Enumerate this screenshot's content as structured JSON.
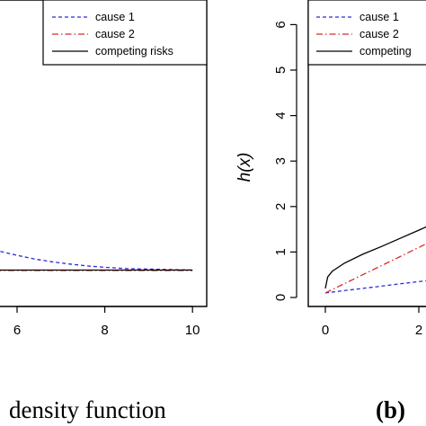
{
  "chart_data": [
    {
      "panel": "left",
      "type": "line",
      "xlim": [
        0,
        10
      ],
      "x_ticks": [
        6,
        8,
        10
      ],
      "legend": {
        "placement": "top-right",
        "entries": [
          "cause 1",
          "cause 2",
          "competing risks"
        ]
      },
      "series": [
        {
          "name": "cause 1",
          "color": "#2b2bd6",
          "style": "dashed",
          "points": [
            [
              5.2,
              0.94
            ],
            [
              5.6,
              0.85
            ],
            [
              6.0,
              0.76
            ],
            [
              6.4,
              0.68
            ],
            [
              6.8,
              0.62
            ],
            [
              7.2,
              0.57
            ],
            [
              7.6,
              0.53
            ],
            [
              8.0,
              0.5
            ],
            [
              8.5,
              0.47
            ],
            [
              9.0,
              0.46
            ],
            [
              9.5,
              0.45
            ],
            [
              10.0,
              0.44
            ]
          ]
        },
        {
          "name": "cause 2",
          "color": "#d62b2b",
          "style": "dashdot",
          "points": [
            [
              5.2,
              0.43
            ],
            [
              10.0,
              0.43
            ]
          ]
        },
        {
          "name": "competing risks",
          "color": "#000000",
          "style": "solid",
          "points": [
            [
              5.2,
              0.44
            ],
            [
              10.0,
              0.44
            ]
          ]
        }
      ]
    },
    {
      "panel": "right",
      "type": "line",
      "ylabel": "h(x)",
      "ylim": [
        0,
        6
      ],
      "y_ticks": [
        0,
        1,
        2,
        3,
        4,
        5,
        6
      ],
      "x_ticks": [
        0,
        2
      ],
      "legend": {
        "placement": "top-right",
        "entries": [
          "cause 1",
          "cause 2",
          "competing"
        ]
      },
      "series": [
        {
          "name": "cause 1",
          "color": "#2b2bd6",
          "style": "dashed",
          "points": [
            [
              0.0,
              0.1
            ],
            [
              0.4,
              0.15
            ],
            [
              0.8,
              0.2
            ],
            [
              1.2,
              0.25
            ],
            [
              1.6,
              0.3
            ],
            [
              2.0,
              0.35
            ],
            [
              2.4,
              0.39
            ],
            [
              2.8,
              0.42
            ]
          ]
        },
        {
          "name": "cause 2",
          "color": "#d62b2b",
          "style": "dashdot",
          "points": [
            [
              0.0,
              0.1
            ],
            [
              0.4,
              0.3
            ],
            [
              0.8,
              0.5
            ],
            [
              1.2,
              0.7
            ],
            [
              1.6,
              0.9
            ],
            [
              2.0,
              1.1
            ],
            [
              2.4,
              1.3
            ],
            [
              2.8,
              1.5
            ]
          ]
        },
        {
          "name": "competing",
          "color": "#000000",
          "style": "solid",
          "points": [
            [
              0.0,
              0.2
            ],
            [
              0.05,
              0.45
            ],
            [
              0.15,
              0.58
            ],
            [
              0.4,
              0.75
            ],
            [
              0.8,
              0.95
            ],
            [
              1.2,
              1.12
            ],
            [
              1.6,
              1.3
            ],
            [
              2.0,
              1.48
            ],
            [
              2.4,
              1.66
            ],
            [
              2.8,
              1.84
            ]
          ]
        }
      ]
    }
  ],
  "captions": {
    "left": "density function",
    "right_tag": "(b)"
  }
}
